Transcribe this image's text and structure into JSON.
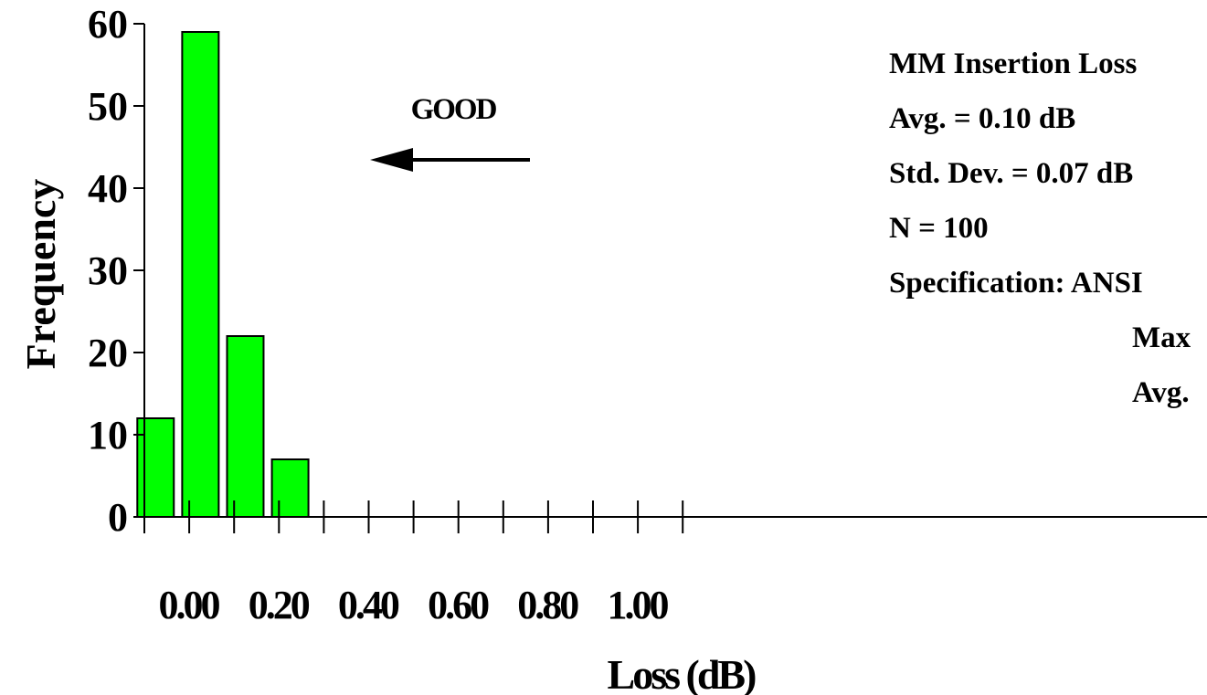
{
  "chart_data": {
    "type": "bar",
    "title": "",
    "xlabel": "Loss (dB)",
    "ylabel": "Frequency",
    "ylim": [
      0,
      60
    ],
    "yticks": [
      "0",
      "10",
      "20",
      "30",
      "40",
      "50",
      "60"
    ],
    "xlim": [
      0,
      1.2
    ],
    "xticks": [
      "0.00",
      "0.20",
      "0.40",
      "0.60",
      "0.80",
      "1.00"
    ],
    "bins": [
      {
        "center": 0.025,
        "value": 12
      },
      {
        "center": 0.125,
        "value": 59
      },
      {
        "center": 0.225,
        "value": 22
      },
      {
        "center": 0.325,
        "value": 7
      }
    ],
    "bar_color": "#00ff00",
    "annotation": {
      "text": "GOOD"
    },
    "info_box": [
      "MM Insertion Loss",
      "Avg. = 0.10 dB",
      "Std. Dev. = 0.07 dB",
      "N = 100",
      "Specification: ANSI",
      "Max",
      "Avg."
    ]
  }
}
